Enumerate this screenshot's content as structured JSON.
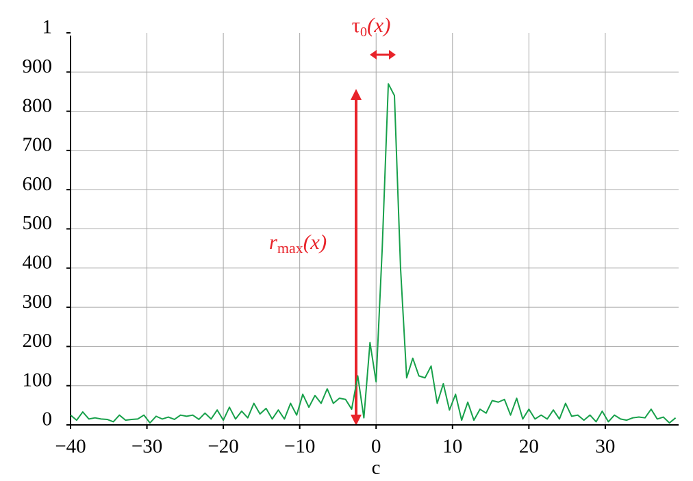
{
  "chart_data": {
    "type": "line",
    "x_label": "c",
    "annotations": {
      "tau": {
        "base": "τ",
        "sub": "0",
        "arg": "(x)"
      },
      "rmax": {
        "base": "r",
        "sub": "max",
        "arg": "(x)"
      }
    },
    "x": [
      -40,
      -39.2,
      -38.4,
      -37.6,
      -36.8,
      -36,
      -35.2,
      -34.4,
      -33.6,
      -32.8,
      -32,
      -31.2,
      -30.4,
      -29.6,
      -28.8,
      -28,
      -27.2,
      -26.4,
      -25.6,
      -24.8,
      -24,
      -23.2,
      -22.4,
      -21.6,
      -20.8,
      -20,
      -19.2,
      -18.4,
      -17.6,
      -16.8,
      -16,
      -15.2,
      -14.4,
      -13.6,
      -12.8,
      -12,
      -11.2,
      -10.4,
      -9.6,
      -8.8,
      -8,
      -7.2,
      -6.4,
      -5.6,
      -4.8,
      -4,
      -3.2,
      -2.4,
      -1.6,
      -0.8,
      0,
      0.8,
      1.6,
      2.4,
      3.2,
      4,
      4.8,
      5.6,
      6.4,
      7.2,
      8,
      8.8,
      9.6,
      10.4,
      11.2,
      12,
      12.8,
      13.6,
      14.4,
      15.2,
      16,
      16.8,
      17.6,
      18.4,
      19.2,
      20,
      20.8,
      21.6,
      22.4,
      23.2,
      24,
      24.8,
      25.6,
      26.4,
      27.2,
      28,
      28.8,
      29.6,
      30.4,
      31.2,
      32,
      32.8,
      33.6,
      34.4,
      35.2,
      36,
      36.8,
      37.6,
      38.4,
      39.2
    ],
    "series": [
      {
        "color": "#17a04a",
        "values": [
          25,
          12,
          33,
          15,
          18,
          15,
          14,
          8,
          25,
          12,
          14,
          15,
          25,
          5,
          22,
          15,
          20,
          14,
          25,
          22,
          25,
          14,
          30,
          15,
          38,
          12,
          45,
          15,
          35,
          18,
          55,
          28,
          42,
          15,
          38,
          15,
          55,
          25,
          78,
          45,
          75,
          55,
          92,
          55,
          68,
          65,
          40,
          125,
          18,
          210,
          110,
          450,
          870,
          840,
          400,
          120,
          170,
          125,
          120,
          150,
          55,
          105,
          38,
          78,
          12,
          58,
          12,
          40,
          30,
          62,
          58,
          65,
          25,
          68,
          15,
          40,
          15,
          25,
          15,
          38,
          15,
          55,
          22,
          25,
          12,
          25,
          8,
          35,
          8,
          25,
          15,
          12,
          18,
          20,
          18,
          40,
          15,
          20,
          5,
          18
        ]
      }
    ],
    "xlim": [
      -40,
      39.6
    ],
    "ylim": [
      0,
      1000
    ],
    "xticks": [
      {
        "value": -40,
        "label": "−40"
      },
      {
        "value": -30,
        "label": "−30"
      },
      {
        "value": -20,
        "label": "−20"
      },
      {
        "value": -10,
        "label": "−10"
      },
      0,
      10,
      20,
      30
    ],
    "yticks": [
      0,
      100,
      200,
      300,
      400,
      500,
      600,
      700,
      800,
      900,
      {
        "value": 1000,
        "label": "1"
      }
    ],
    "grid": true
  }
}
